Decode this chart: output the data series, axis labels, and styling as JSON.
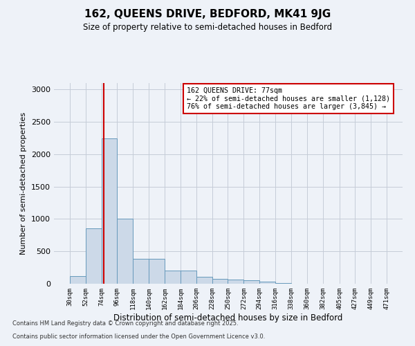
{
  "title1": "162, QUEENS DRIVE, BEDFORD, MK41 9JG",
  "title2": "Size of property relative to semi-detached houses in Bedford",
  "xlabel": "Distribution of semi-detached houses by size in Bedford",
  "ylabel": "Number of semi-detached properties",
  "footnote1": "Contains HM Land Registry data © Crown copyright and database right 2025.",
  "footnote2": "Contains public sector information licensed under the Open Government Licence v3.0.",
  "annotation_line1": "162 QUEENS DRIVE: 77sqm",
  "annotation_line2": "← 22% of semi-detached houses are smaller (1,128)",
  "annotation_line3": "76% of semi-detached houses are larger (3,845) →",
  "property_size": 77,
  "bar_color": "#ccd9e8",
  "bar_edge_color": "#6699bb",
  "vline_color": "#cc0000",
  "background_color": "#eef2f8",
  "grid_color": "#c5ccd8",
  "bins": [
    30,
    52,
    74,
    96,
    118,
    140,
    162,
    184,
    206,
    228,
    250,
    272,
    294,
    316,
    338,
    360,
    382,
    405,
    427,
    449,
    471
  ],
  "counts": [
    120,
    850,
    2250,
    1000,
    390,
    390,
    200,
    200,
    110,
    80,
    60,
    50,
    30,
    10,
    5,
    3,
    2,
    1,
    1,
    1
  ],
  "ylim": [
    0,
    3100
  ],
  "yticks": [
    0,
    500,
    1000,
    1500,
    2000,
    2500,
    3000
  ]
}
